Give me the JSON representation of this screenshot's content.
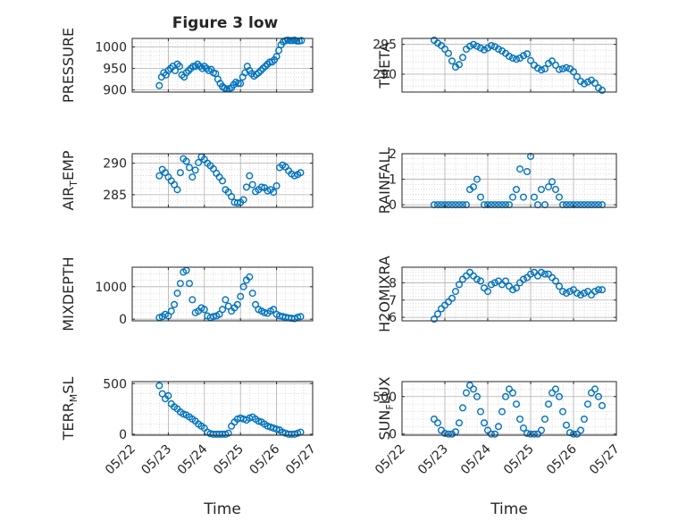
{
  "title": "Figure 3 low",
  "colors": {
    "marker": "#0072BD",
    "axes": "#262626",
    "grid": "#c8c8c8",
    "background": "#ffffff"
  },
  "x_ticks": [
    "05/22",
    "05/23",
    "05/24",
    "05/25",
    "05/26",
    "05/27"
  ],
  "xlabel": "Time",
  "chart_data": [
    {
      "id": "pressure",
      "type": "scatter",
      "ylabel": "PRESSURE",
      "ylim": [
        895,
        1020
      ],
      "yticks": [
        900,
        950,
        1000
      ],
      "xlim": [
        "05/22",
        "05/27"
      ],
      "x": [
        "05/22 18:00",
        "05/22 19:30",
        "05/22 21:00",
        "05/22 22:30",
        "05/23 00:00",
        "05/23 01:30",
        "05/23 03:00",
        "05/23 04:30",
        "05/23 06:00",
        "05/23 07:30",
        "05/23 09:00",
        "05/23 10:30",
        "05/23 12:00",
        "05/23 13:30",
        "05/23 15:00",
        "05/23 16:30",
        "05/23 18:00",
        "05/23 19:30",
        "05/23 21:00",
        "05/23 22:30",
        "05/24 00:00",
        "05/24 01:30",
        "05/24 03:00",
        "05/24 04:30",
        "05/24 06:00",
        "05/24 07:30",
        "05/24 09:00",
        "05/24 10:30",
        "05/24 12:00",
        "05/24 13:30",
        "05/24 15:00",
        "05/24 16:30",
        "05/24 18:00",
        "05/24 19:30",
        "05/24 21:00",
        "05/24 22:30",
        "05/25 00:00",
        "05/25 01:30",
        "05/25 03:00",
        "05/25 04:30",
        "05/25 06:00",
        "05/25 07:30",
        "05/25 09:00",
        "05/25 10:30",
        "05/25 12:00",
        "05/25 13:30",
        "05/25 15:00",
        "05/25 16:30",
        "05/25 18:00",
        "05/25 19:30",
        "05/25 21:00",
        "05/25 22:30",
        "05/26 00:00",
        "05/26 01:30",
        "05/26 03:00",
        "05/26 04:30",
        "05/26 06:00",
        "05/26 07:30",
        "05/26 09:00",
        "05/26 10:30",
        "05/26 12:00",
        "05/26 13:30",
        "05/26 15:00",
        "05/26 16:30"
      ],
      "y": [
        910,
        930,
        940,
        935,
        945,
        950,
        955,
        945,
        960,
        955,
        935,
        930,
        940,
        945,
        950,
        955,
        955,
        960,
        955,
        950,
        955,
        950,
        945,
        948,
        940,
        938,
        925,
        915,
        908,
        904,
        902,
        903,
        905,
        912,
        918,
        915,
        915,
        930,
        940,
        955,
        945,
        938,
        932,
        936,
        940,
        945,
        950,
        955,
        960,
        965,
        965,
        970,
        978,
        992,
        1005,
        1012,
        1015,
        1016,
        1015,
        1015,
        1016,
        1014,
        1014,
        1015
      ]
    },
    {
      "id": "theta",
      "type": "scatter",
      "ylabel": "THETA",
      "ylim": [
        287,
        296
      ],
      "yticks": [
        290,
        295
      ],
      "xlim": [
        "05/22",
        "05/27"
      ],
      "x": [
        "05/22 18:00",
        "05/22 20:00",
        "05/22 22:00",
        "05/23 00:00",
        "05/23 02:00",
        "05/23 04:00",
        "05/23 06:00",
        "05/23 08:00",
        "05/23 10:00",
        "05/23 12:00",
        "05/23 14:00",
        "05/23 16:00",
        "05/23 18:00",
        "05/23 20:00",
        "05/23 22:00",
        "05/24 00:00",
        "05/24 02:00",
        "05/24 04:00",
        "05/24 06:00",
        "05/24 08:00",
        "05/24 10:00",
        "05/24 12:00",
        "05/24 14:00",
        "05/24 16:00",
        "05/24 18:00",
        "05/24 20:00",
        "05/24 22:00",
        "05/25 00:00",
        "05/25 02:00",
        "05/25 04:00",
        "05/25 06:00",
        "05/25 08:00",
        "05/25 10:00",
        "05/25 12:00",
        "05/25 14:00",
        "05/25 16:00",
        "05/25 18:00",
        "05/25 20:00",
        "05/25 22:00",
        "05/26 00:00",
        "05/26 02:00",
        "05/26 04:00",
        "05/26 06:00",
        "05/26 08:00",
        "05/26 10:00",
        "05/26 12:00",
        "05/26 14:00",
        "05/26 16:00"
      ],
      "y": [
        295.7,
        295.2,
        294.8,
        294.2,
        293.5,
        292.2,
        291.2,
        291.6,
        292.8,
        294.2,
        294.7,
        295.0,
        294.7,
        294.4,
        294.1,
        294.4,
        294.8,
        294.6,
        294.2,
        293.9,
        293.5,
        293.0,
        292.7,
        292.5,
        292.7,
        293.1,
        293.4,
        292.3,
        291.5,
        291.0,
        290.7,
        290.9,
        291.8,
        292.2,
        291.5,
        290.8,
        290.9,
        291.1,
        290.9,
        290.4,
        289.6,
        288.8,
        288.4,
        288.7,
        289.0,
        288.5,
        287.7,
        287.3
      ]
    },
    {
      "id": "air_temp",
      "type": "scatter",
      "ylabel": "AIR_TEMP",
      "ylim": [
        283,
        291.5
      ],
      "yticks": [
        285,
        290
      ],
      "xlim": [
        "05/22",
        "05/27"
      ],
      "x": [
        "05/22 18:00",
        "05/22 20:00",
        "05/22 22:00",
        "05/23 00:00",
        "05/23 02:00",
        "05/23 04:00",
        "05/23 06:00",
        "05/23 08:00",
        "05/23 10:00",
        "05/23 12:00",
        "05/23 14:00",
        "05/23 16:00",
        "05/23 18:00",
        "05/23 20:00",
        "05/23 22:00",
        "05/24 00:00",
        "05/24 02:00",
        "05/24 04:00",
        "05/24 06:00",
        "05/24 08:00",
        "05/24 10:00",
        "05/24 12:00",
        "05/24 14:00",
        "05/24 16:00",
        "05/24 18:00",
        "05/24 20:00",
        "05/24 22:00",
        "05/25 00:00",
        "05/25 02:00",
        "05/25 04:00",
        "05/25 06:00",
        "05/25 08:00",
        "05/25 10:00",
        "05/25 12:00",
        "05/25 14:00",
        "05/25 16:00",
        "05/25 18:00",
        "05/25 20:00",
        "05/25 22:00",
        "05/26 00:00",
        "05/26 02:00",
        "05/26 04:00",
        "05/26 06:00",
        "05/26 08:00",
        "05/26 10:00",
        "05/26 12:00",
        "05/26 14:00",
        "05/26 16:00"
      ],
      "y": [
        288.0,
        289.0,
        288.5,
        287.8,
        287.2,
        286.6,
        285.8,
        288.5,
        290.7,
        290.3,
        289.3,
        287.8,
        288.9,
        290.1,
        291.0,
        290.6,
        290.0,
        289.6,
        289.1,
        288.4,
        287.8,
        287.2,
        285.8,
        285.4,
        284.7,
        283.8,
        283.7,
        283.8,
        284.2,
        286.2,
        288.0,
        286.6,
        285.5,
        285.8,
        286.2,
        286.1,
        285.6,
        285.8,
        285.4,
        286.4,
        289.3,
        289.7,
        289.4,
        288.8,
        288.3,
        288.0,
        288.2,
        288.5
      ]
    },
    {
      "id": "rainfall",
      "type": "scatter",
      "ylabel": "RAINFALL",
      "ylim": [
        -0.1,
        2.0
      ],
      "yticks": [
        0,
        1,
        2
      ],
      "xlim": [
        "05/22",
        "05/27"
      ],
      "x": [
        "05/22 18:00",
        "05/22 20:00",
        "05/22 22:00",
        "05/23 00:00",
        "05/23 02:00",
        "05/23 04:00",
        "05/23 06:00",
        "05/23 08:00",
        "05/23 10:00",
        "05/23 12:00",
        "05/23 14:00",
        "05/23 16:00",
        "05/23 18:00",
        "05/23 20:00",
        "05/23 22:00",
        "05/24 00:00",
        "05/24 02:00",
        "05/24 04:00",
        "05/24 06:00",
        "05/24 08:00",
        "05/24 10:00",
        "05/24 12:00",
        "05/24 14:00",
        "05/24 16:00",
        "05/24 18:00",
        "05/24 20:00",
        "05/24 22:00",
        "05/25 00:00",
        "05/25 02:00",
        "05/25 04:00",
        "05/25 06:00",
        "05/25 08:00",
        "05/25 10:00",
        "05/25 12:00",
        "05/25 14:00",
        "05/25 16:00",
        "05/25 18:00",
        "05/25 20:00",
        "05/25 22:00",
        "05/26 00:00",
        "05/26 02:00",
        "05/26 04:00",
        "05/26 06:00",
        "05/26 08:00",
        "05/26 10:00",
        "05/26 12:00",
        "05/26 14:00",
        "05/26 16:00"
      ],
      "y": [
        0,
        0,
        0,
        0,
        0,
        0,
        0,
        0,
        0,
        0,
        0.6,
        0.7,
        1.0,
        0.3,
        0,
        0,
        0,
        0,
        0,
        0,
        0,
        0,
        0.3,
        0.6,
        1.4,
        0.3,
        1.3,
        1.9,
        0.3,
        0,
        0.6,
        0,
        0.7,
        0.9,
        0.6,
        0.3,
        0,
        0,
        0,
        0,
        0,
        0,
        0,
        0,
        0,
        0,
        0,
        0
      ]
    },
    {
      "id": "mixdepth",
      "type": "scatter",
      "ylabel": "MIXDEPTH",
      "ylim": [
        -50,
        1600
      ],
      "yticks": [
        0,
        1000
      ],
      "xlim": [
        "05/22",
        "05/27"
      ],
      "x": [
        "05/22 18:00",
        "05/22 20:00",
        "05/22 22:00",
        "05/23 00:00",
        "05/23 02:00",
        "05/23 04:00",
        "05/23 06:00",
        "05/23 08:00",
        "05/23 10:00",
        "05/23 12:00",
        "05/23 14:00",
        "05/23 16:00",
        "05/23 18:00",
        "05/23 20:00",
        "05/23 22:00",
        "05/24 00:00",
        "05/24 02:00",
        "05/24 04:00",
        "05/24 06:00",
        "05/24 08:00",
        "05/24 10:00",
        "05/24 12:00",
        "05/24 14:00",
        "05/24 16:00",
        "05/24 18:00",
        "05/24 20:00",
        "05/24 22:00",
        "05/25 00:00",
        "05/25 02:00",
        "05/25 04:00",
        "05/25 06:00",
        "05/25 08:00",
        "05/25 10:00",
        "05/25 12:00",
        "05/25 14:00",
        "05/25 16:00",
        "05/25 18:00",
        "05/25 20:00",
        "05/25 22:00",
        "05/26 00:00",
        "05/26 02:00",
        "05/26 04:00",
        "05/26 06:00",
        "05/26 08:00",
        "05/26 10:00",
        "05/26 12:00",
        "05/26 14:00",
        "05/26 16:00"
      ],
      "y": [
        50,
        80,
        150,
        100,
        250,
        450,
        800,
        1100,
        1450,
        1500,
        1100,
        600,
        200,
        250,
        350,
        300,
        100,
        50,
        80,
        100,
        150,
        300,
        600,
        400,
        250,
        350,
        450,
        700,
        1000,
        1200,
        1300,
        800,
        450,
        300,
        250,
        200,
        180,
        250,
        300,
        150,
        100,
        80,
        60,
        40,
        30,
        20,
        60,
        80
      ]
    },
    {
      "id": "h2omixra",
      "type": "scatter",
      "ylabel": "H2OMIXRA",
      "ylim": [
        5.8,
        8.9
      ],
      "yticks": [
        6,
        7,
        8
      ],
      "xlim": [
        "05/22",
        "05/27"
      ],
      "x": [
        "05/22 18:00",
        "05/22 20:00",
        "05/22 22:00",
        "05/23 00:00",
        "05/23 02:00",
        "05/23 04:00",
        "05/23 06:00",
        "05/23 08:00",
        "05/23 10:00",
        "05/23 12:00",
        "05/23 14:00",
        "05/23 16:00",
        "05/23 18:00",
        "05/23 20:00",
        "05/23 22:00",
        "05/24 00:00",
        "05/24 02:00",
        "05/24 04:00",
        "05/24 06:00",
        "05/24 08:00",
        "05/24 10:00",
        "05/24 12:00",
        "05/24 14:00",
        "05/24 16:00",
        "05/24 18:00",
        "05/24 20:00",
        "05/24 22:00",
        "05/25 00:00",
        "05/25 02:00",
        "05/25 04:00",
        "05/25 06:00",
        "05/25 08:00",
        "05/25 10:00",
        "05/25 12:00",
        "05/25 14:00",
        "05/25 16:00",
        "05/25 18:00",
        "05/25 20:00",
        "05/25 22:00",
        "05/26 00:00",
        "05/26 02:00",
        "05/26 04:00",
        "05/26 06:00",
        "05/26 08:00",
        "05/26 10:00",
        "05/26 12:00",
        "05/26 14:00",
        "05/26 16:00"
      ],
      "y": [
        5.9,
        6.2,
        6.5,
        6.7,
        6.9,
        7.1,
        7.5,
        7.9,
        8.2,
        8.4,
        8.6,
        8.4,
        8.2,
        8.1,
        7.7,
        7.5,
        7.9,
        8.0,
        8.1,
        7.9,
        8.1,
        7.8,
        7.6,
        7.7,
        8.0,
        8.2,
        8.3,
        8.5,
        8.6,
        8.4,
        8.6,
        8.5,
        8.5,
        8.3,
        8.1,
        7.8,
        7.5,
        7.4,
        7.5,
        7.6,
        7.4,
        7.3,
        7.4,
        7.5,
        7.3,
        7.5,
        7.6,
        7.6
      ]
    },
    {
      "id": "terr_msl",
      "type": "scatter",
      "ylabel": "TERR_MSL",
      "ylim": [
        -10,
        520
      ],
      "yticks": [
        0,
        500
      ],
      "xlim": [
        "05/22",
        "05/27"
      ],
      "x": [
        "05/22 18:00",
        "05/22 20:00",
        "05/22 22:00",
        "05/23 00:00",
        "05/23 02:00",
        "05/23 04:00",
        "05/23 06:00",
        "05/23 08:00",
        "05/23 10:00",
        "05/23 12:00",
        "05/23 14:00",
        "05/23 16:00",
        "05/23 18:00",
        "05/23 20:00",
        "05/23 22:00",
        "05/24 00:00",
        "05/24 02:00",
        "05/24 04:00",
        "05/24 06:00",
        "05/24 08:00",
        "05/24 10:00",
        "05/24 12:00",
        "05/24 14:00",
        "05/24 16:00",
        "05/24 18:00",
        "05/24 20:00",
        "05/24 22:00",
        "05/25 00:00",
        "05/25 02:00",
        "05/25 04:00",
        "05/25 06:00",
        "05/25 08:00",
        "05/25 10:00",
        "05/25 12:00",
        "05/25 14:00",
        "05/25 16:00",
        "05/25 18:00",
        "05/25 20:00",
        "05/25 22:00",
        "05/26 00:00",
        "05/26 02:00",
        "05/26 04:00",
        "05/26 06:00",
        "05/26 08:00",
        "05/26 10:00",
        "05/26 12:00",
        "05/26 14:00",
        "05/26 16:00"
      ],
      "y": [
        480,
        400,
        350,
        380,
        300,
        270,
        250,
        220,
        200,
        190,
        170,
        150,
        130,
        100,
        80,
        60,
        20,
        5,
        0,
        0,
        0,
        0,
        0,
        10,
        80,
        120,
        150,
        160,
        150,
        140,
        160,
        170,
        150,
        130,
        120,
        100,
        80,
        70,
        60,
        50,
        40,
        20,
        10,
        0,
        0,
        0,
        10,
        20
      ]
    },
    {
      "id": "sun_flux",
      "type": "scatter",
      "ylabel": "SUN_FLUX",
      "ylim": [
        -15,
        700
      ],
      "yticks": [
        0,
        500
      ],
      "xlim": [
        "05/22",
        "05/27"
      ],
      "x": [
        "05/22 18:00",
        "05/22 20:00",
        "05/22 22:00",
        "05/23 00:00",
        "05/23 02:00",
        "05/23 04:00",
        "05/23 06:00",
        "05/23 08:00",
        "05/23 10:00",
        "05/23 12:00",
        "05/23 14:00",
        "05/23 16:00",
        "05/23 18:00",
        "05/23 20:00",
        "05/23 22:00",
        "05/24 00:00",
        "05/24 02:00",
        "05/24 04:00",
        "05/24 06:00",
        "05/24 08:00",
        "05/24 10:00",
        "05/24 12:00",
        "05/24 14:00",
        "05/24 16:00",
        "05/24 18:00",
        "05/24 20:00",
        "05/24 22:00",
        "05/25 00:00",
        "05/25 02:00",
        "05/25 04:00",
        "05/25 06:00",
        "05/25 08:00",
        "05/25 10:00",
        "05/25 12:00",
        "05/25 14:00",
        "05/25 16:00",
        "05/25 18:00",
        "05/25 20:00",
        "05/25 22:00",
        "05/26 00:00",
        "05/26 02:00",
        "05/26 04:00",
        "05/26 06:00",
        "05/26 08:00",
        "05/26 10:00",
        "05/26 12:00",
        "05/26 14:00",
        "05/26 16:00"
      ],
      "y": [
        200,
        150,
        50,
        10,
        0,
        0,
        30,
        150,
        350,
        550,
        650,
        600,
        500,
        300,
        150,
        50,
        0,
        0,
        100,
        300,
        500,
        600,
        550,
        400,
        200,
        80,
        10,
        0,
        0,
        0,
        50,
        200,
        400,
        550,
        600,
        500,
        300,
        120,
        20,
        0,
        0,
        50,
        200,
        400,
        550,
        600,
        500,
        380
      ]
    }
  ]
}
